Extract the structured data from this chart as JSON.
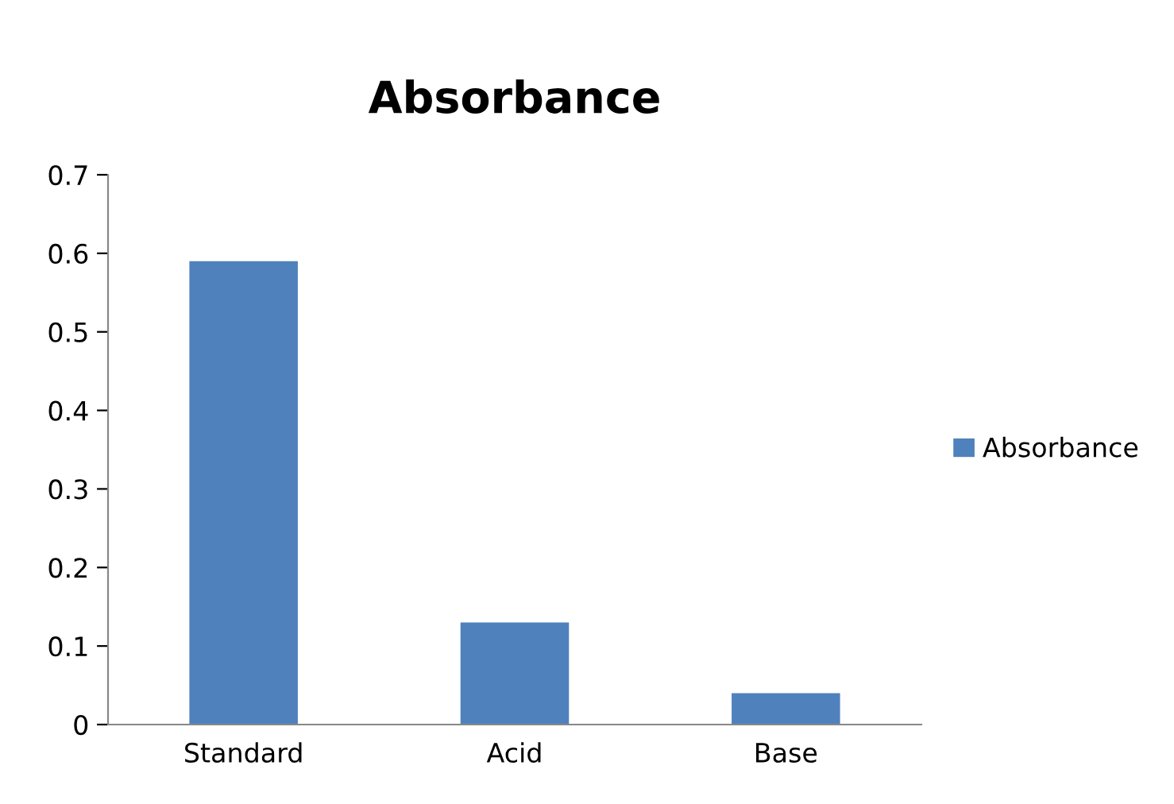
{
  "chart_data": {
    "type": "bar",
    "title": "Absorbance",
    "categories": [
      "Standard",
      "Acid",
      "Base"
    ],
    "series": [
      {
        "name": "Absorbance",
        "color": "#4f81bd",
        "values": [
          0.59,
          0.13,
          0.04
        ]
      }
    ],
    "ylim": [
      0,
      0.7
    ],
    "yticks": [
      0,
      0.1,
      0.2,
      0.3,
      0.4,
      0.5,
      0.6,
      0.7
    ],
    "grid": false,
    "legend": "right"
  }
}
